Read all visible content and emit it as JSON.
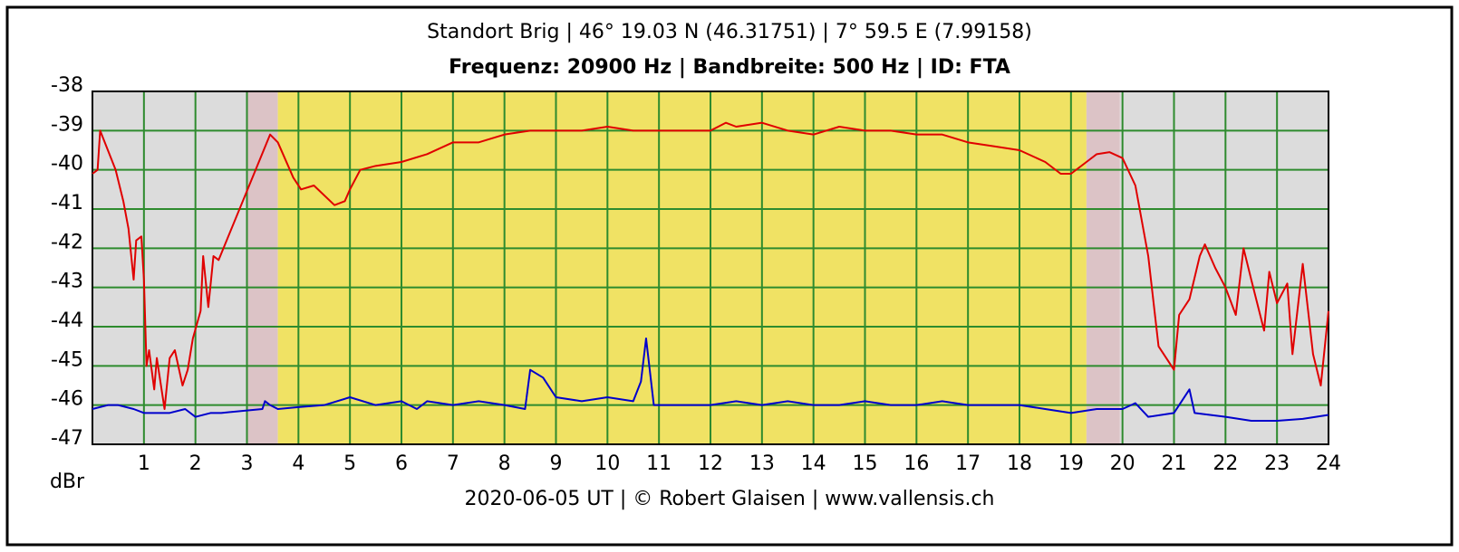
{
  "chart_data": {
    "type": "line",
    "title": "Standort Brig | 46° 19.03 N (46.31751) | 7° 59.5 E (7.99158)",
    "subtitle": "Frequenz: 20900 Hz | Bandbreite: 500 Hz | ID: FTA",
    "ylabel": "dBr",
    "footer": "2020-06-05 UT | © Robert Glaisen | www.vallensis.ch",
    "xlim": [
      0,
      24
    ],
    "xticks": [
      1,
      2,
      3,
      4,
      5,
      6,
      7,
      8,
      9,
      10,
      11,
      12,
      13,
      14,
      15,
      16,
      17,
      18,
      19,
      20,
      21,
      22,
      23,
      24
    ],
    "ylim": [
      -47,
      -38
    ],
    "yticks": [
      -38,
      -39,
      -40,
      -41,
      -42,
      -43,
      -44,
      -45,
      -46,
      -47
    ],
    "grid": true,
    "grid_color": "#2e8b2e",
    "regions": [
      {
        "from": 0,
        "to": 3.0,
        "color": "#dcdcdc"
      },
      {
        "from": 3.0,
        "to": 3.6,
        "color": "#dcc3c6"
      },
      {
        "from": 3.6,
        "to": 19.3,
        "color": "#f0e264"
      },
      {
        "from": 19.3,
        "to": 19.95,
        "color": "#dcc3c6"
      },
      {
        "from": 19.95,
        "to": 24,
        "color": "#dcdcdc"
      }
    ],
    "series": [
      {
        "color": "#e00000",
        "x": [
          0,
          0.1,
          0.15,
          0.3,
          0.45,
          0.6,
          0.7,
          0.8,
          0.85,
          0.95,
          1.0,
          1.05,
          1.1,
          1.2,
          1.25,
          1.4,
          1.5,
          1.6,
          1.75,
          1.85,
          1.95,
          2.1,
          2.15,
          2.25,
          2.35,
          2.45,
          3.45,
          3.6,
          3.9,
          4.05,
          4.3,
          4.7,
          4.9,
          5.0,
          5.2,
          5.5,
          6.0,
          6.5,
          7.0,
          7.5,
          8.0,
          8.5,
          9.0,
          9.5,
          10.0,
          10.5,
          11.0,
          11.5,
          12.0,
          12.3,
          12.5,
          13.0,
          13.5,
          14.0,
          14.5,
          15.0,
          15.5,
          16.0,
          16.5,
          17.0,
          17.5,
          18.0,
          18.5,
          18.8,
          19.0,
          19.3,
          19.5,
          19.75,
          20.0,
          20.25,
          20.5,
          20.7,
          21.0,
          21.1,
          21.3,
          21.5,
          21.6,
          21.8,
          22.0,
          22.2,
          22.35,
          22.5,
          22.75,
          22.85,
          23.0,
          23.2,
          23.3,
          23.5,
          23.7,
          23.85,
          24.0
        ],
        "values": [
          -40.1,
          -40.0,
          -39.0,
          -39.5,
          -40.0,
          -40.8,
          -41.5,
          -42.8,
          -41.8,
          -41.7,
          -42.8,
          -45.0,
          -44.6,
          -45.6,
          -44.8,
          -46.1,
          -44.8,
          -44.6,
          -45.5,
          -45.1,
          -44.3,
          -43.6,
          -42.2,
          -43.5,
          -42.2,
          -42.3,
          -39.1,
          -39.3,
          -40.2,
          -40.5,
          -40.4,
          -40.9,
          -40.8,
          -40.5,
          -40.0,
          -39.9,
          -39.8,
          -39.6,
          -39.3,
          -39.3,
          -39.1,
          -39.0,
          -39.0,
          -39.0,
          -38.9,
          -39.0,
          -39.0,
          -39.0,
          -39.0,
          -38.8,
          -38.9,
          -38.8,
          -39.0,
          -39.1,
          -38.9,
          -39.0,
          -39.0,
          -39.1,
          -39.1,
          -39.3,
          -39.4,
          -39.5,
          -39.8,
          -40.1,
          -40.1,
          -39.8,
          -39.6,
          -39.55,
          -39.7,
          -40.4,
          -42.2,
          -44.5,
          -45.1,
          -43.7,
          -43.3,
          -42.2,
          -41.9,
          -42.5,
          -43.0,
          -43.7,
          -42.0,
          -42.8,
          -44.1,
          -42.6,
          -43.4,
          -42.9,
          -44.7,
          -42.4,
          -44.7,
          -45.5,
          -43.6
        ]
      },
      {
        "color": "#0000cc",
        "x": [
          0,
          0.3,
          0.5,
          0.8,
          1.0,
          1.2,
          1.5,
          1.8,
          2.0,
          2.3,
          2.5,
          3.3,
          3.35,
          3.45,
          3.6,
          4,
          4.5,
          5,
          5.5,
          6,
          6.3,
          6.5,
          7,
          7.5,
          8,
          8.4,
          8.5,
          8.75,
          9,
          9.5,
          10,
          10.5,
          10.65,
          10.75,
          10.9,
          11.5,
          12,
          12.5,
          13,
          13.5,
          14,
          14.5,
          15,
          15.5,
          16,
          16.5,
          17,
          17.5,
          18,
          18.5,
          19,
          19.5,
          20,
          20.25,
          20.5,
          21,
          21.3,
          21.4,
          22,
          22.5,
          23,
          23.5,
          24
        ],
        "values": [
          -46.1,
          -46.0,
          -46.0,
          -46.1,
          -46.2,
          -46.2,
          -46.2,
          -46.1,
          -46.3,
          -46.2,
          -46.2,
          -46.1,
          -45.9,
          -46.0,
          -46.1,
          -46.05,
          -46.0,
          -45.8,
          -46.0,
          -45.9,
          -46.1,
          -45.9,
          -46.0,
          -45.9,
          -46.0,
          -46.1,
          -45.1,
          -45.3,
          -45.8,
          -45.9,
          -45.8,
          -45.9,
          -45.4,
          -44.3,
          -46.0,
          -46.0,
          -46.0,
          -45.9,
          -46.0,
          -45.9,
          -46.0,
          -46.0,
          -45.9,
          -46.0,
          -46.0,
          -45.9,
          -46.0,
          -46.0,
          -46.0,
          -46.1,
          -46.2,
          -46.1,
          -46.1,
          -45.95,
          -46.3,
          -46.2,
          -45.6,
          -46.2,
          -46.3,
          -46.4,
          -46.4,
          -46.35,
          -46.25
        ]
      }
    ]
  }
}
